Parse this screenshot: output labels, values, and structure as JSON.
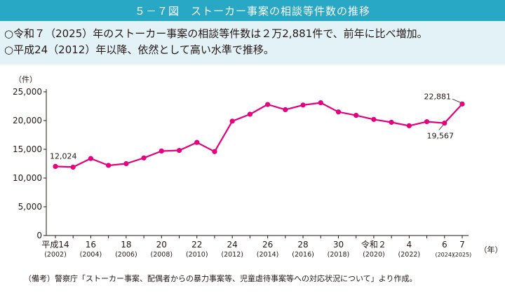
{
  "header": {
    "title": "５－７図　ストーカー事案の相談等件数の推移"
  },
  "summary": {
    "line1": "○令和７（2025）年のストーカー事案の相談等件数は２万2,881件で、前年に比べ増加。",
    "line2": "○平成24（2012）年以降、依然として高い水準で推移。"
  },
  "footnote": "（備考）警察庁「ストーカー事案、配偶者からの暴力事案等、児童虐待事案等への対応状況について」より作成。",
  "colors": {
    "header_bg": "#29a8c6",
    "summary_bg": "#e3f2f7",
    "series": "#e4007f",
    "axis": "#231815"
  },
  "chart_data": {
    "type": "line",
    "ylabel": "（件）",
    "xlabel": "（年）",
    "ylim": [
      0,
      25000
    ],
    "yticks": [
      "0",
      "5,000",
      "10,000",
      "15,000",
      "20,000",
      "25,000"
    ],
    "grid": false,
    "years": [
      2002,
      2003,
      2004,
      2005,
      2006,
      2007,
      2008,
      2009,
      2010,
      2011,
      2012,
      2013,
      2014,
      2015,
      2016,
      2017,
      2018,
      2019,
      2020,
      2021,
      2022,
      2023,
      2024,
      2025
    ],
    "series": [
      {
        "values": [
          12024,
          11900,
          13400,
          12200,
          12500,
          13500,
          14700,
          14800,
          16200,
          14600,
          19900,
          21100,
          22800,
          21900,
          22700,
          23100,
          21500,
          20900,
          20200,
          19700,
          19100,
          19800,
          19567,
          22881
        ]
      }
    ],
    "tick_labels": [
      {
        "year": 2002,
        "label": "平成14",
        "sub": "(2002)"
      },
      {
        "year": 2004,
        "label": "16",
        "sub": "(2004)"
      },
      {
        "year": 2006,
        "label": "18",
        "sub": "(2006)"
      },
      {
        "year": 2008,
        "label": "20",
        "sub": "(2008)"
      },
      {
        "year": 2010,
        "label": "22",
        "sub": "(2010)"
      },
      {
        "year": 2012,
        "label": "24",
        "sub": "(2012)"
      },
      {
        "year": 2014,
        "label": "26",
        "sub": "(2014)"
      },
      {
        "year": 2016,
        "label": "28",
        "sub": "(2016)"
      },
      {
        "year": 2018,
        "label": "30",
        "sub": "(2018)"
      },
      {
        "year": 2020,
        "label": "令和２",
        "sub": "(2020)"
      },
      {
        "year": 2022,
        "label": "4",
        "sub": "(2022)"
      },
      {
        "year": 2024,
        "label": "6",
        "sub": "(2024)"
      },
      {
        "year": 2025,
        "label": "7",
        "sub": "(2025)"
      }
    ],
    "annotations": [
      {
        "year": 2002,
        "text": "12,024"
      },
      {
        "year": 2024,
        "text": "19,567"
      },
      {
        "year": 2025,
        "text": "22,881"
      }
    ]
  }
}
